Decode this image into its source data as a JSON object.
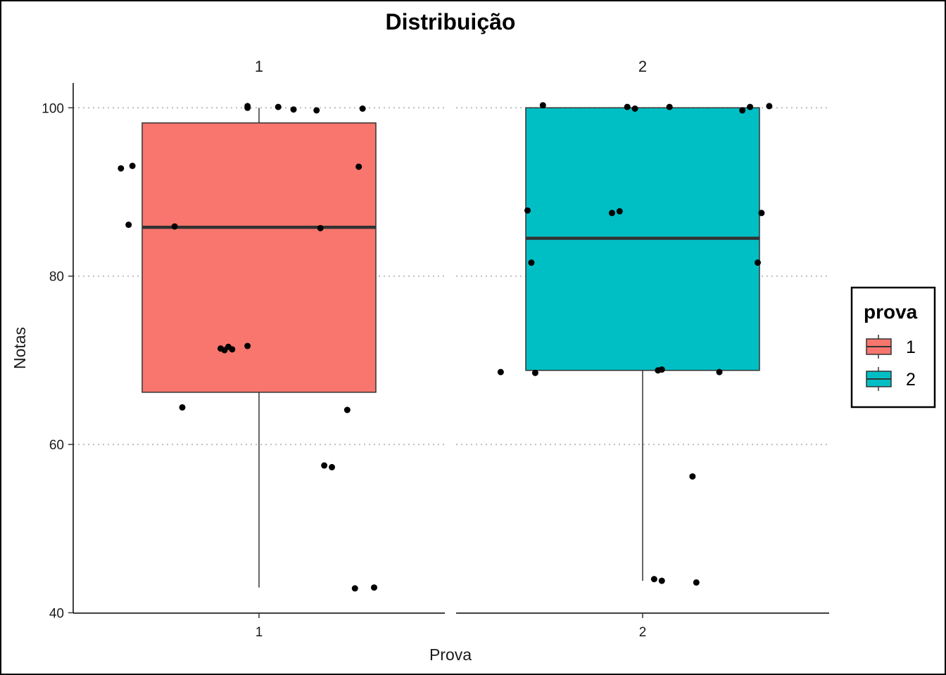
{
  "chart_data": {
    "type": "boxplot",
    "title": "Distribuição",
    "xlabel": "Prova",
    "ylabel": "Notas",
    "ylim": [
      40,
      103
    ],
    "yticks": [
      40,
      60,
      80,
      100
    ],
    "grid": "horizontal dotted at major ticks",
    "facets": [
      {
        "label": "1",
        "category": "1",
        "color": "#F8766D",
        "box": {
          "min": 43,
          "q1": 66.2,
          "median": 85.8,
          "q3": 98.2,
          "max": 100
        },
        "points": [
          {
            "x": -0.36,
            "y": 92.8
          },
          {
            "x": -0.33,
            "y": 93.1
          },
          {
            "x": -0.34,
            "y": 86.1
          },
          {
            "x": -0.22,
            "y": 85.9
          },
          {
            "x": -0.2,
            "y": 64.4
          },
          {
            "x": -0.1,
            "y": 71.4
          },
          {
            "x": -0.09,
            "y": 71.2
          },
          {
            "x": -0.08,
            "y": 71.6
          },
          {
            "x": -0.07,
            "y": 71.3
          },
          {
            "x": -0.03,
            "y": 71.7
          },
          {
            "x": -0.03,
            "y": 100.2
          },
          {
            "x": -0.03,
            "y": 100.0
          },
          {
            "x": 0.05,
            "y": 100.1
          },
          {
            "x": 0.09,
            "y": 99.8
          },
          {
            "x": 0.15,
            "y": 99.7
          },
          {
            "x": 0.16,
            "y": 85.7
          },
          {
            "x": 0.17,
            "y": 57.5
          },
          {
            "x": 0.19,
            "y": 57.3
          },
          {
            "x": 0.23,
            "y": 64.1
          },
          {
            "x": 0.25,
            "y": 42.9
          },
          {
            "x": 0.26,
            "y": 93.0
          },
          {
            "x": 0.27,
            "y": 99.9
          },
          {
            "x": 0.3,
            "y": 43.0
          }
        ]
      },
      {
        "label": "2",
        "category": "2",
        "color": "#00BFC4",
        "box": {
          "min": 43.8,
          "q1": 68.8,
          "median": 84.5,
          "q3": 100,
          "max": 100
        },
        "points": [
          {
            "x": -0.37,
            "y": 68.6
          },
          {
            "x": -0.3,
            "y": 87.8
          },
          {
            "x": -0.29,
            "y": 81.6
          },
          {
            "x": -0.28,
            "y": 68.5
          },
          {
            "x": -0.26,
            "y": 100.3
          },
          {
            "x": -0.08,
            "y": 87.5
          },
          {
            "x": -0.06,
            "y": 87.7
          },
          {
            "x": -0.04,
            "y": 100.1
          },
          {
            "x": -0.02,
            "y": 99.9
          },
          {
            "x": 0.03,
            "y": 44.0
          },
          {
            "x": 0.04,
            "y": 68.8
          },
          {
            "x": 0.05,
            "y": 43.8
          },
          {
            "x": 0.05,
            "y": 68.9
          },
          {
            "x": 0.07,
            "y": 100.1
          },
          {
            "x": 0.13,
            "y": 56.2
          },
          {
            "x": 0.14,
            "y": 43.6
          },
          {
            "x": 0.2,
            "y": 68.6
          },
          {
            "x": 0.26,
            "y": 99.7
          },
          {
            "x": 0.28,
            "y": 100.1
          },
          {
            "x": 0.3,
            "y": 81.6
          },
          {
            "x": 0.31,
            "y": 87.5
          },
          {
            "x": 0.33,
            "y": 100.2
          }
        ]
      }
    ],
    "legend": {
      "title": "prova",
      "position": "right",
      "entries": [
        {
          "label": "1",
          "color": "#F8766D"
        },
        {
          "label": "2",
          "color": "#00BFC4"
        }
      ]
    }
  }
}
